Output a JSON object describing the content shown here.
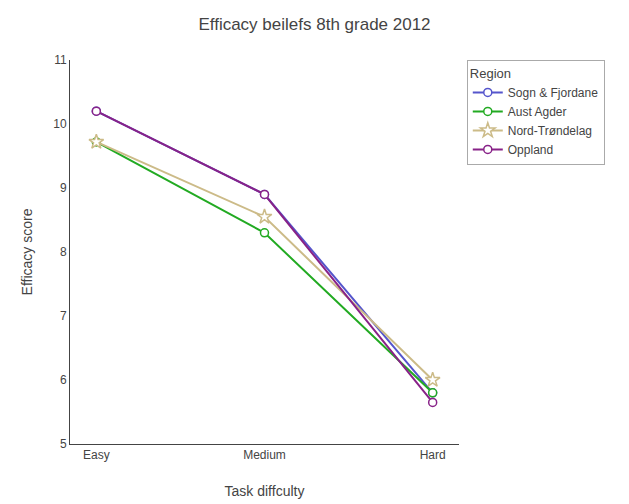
{
  "chart_data": {
    "type": "line",
    "title": "Efficacy beilefs 8th grade 2012",
    "xlabel": "Task diffculty",
    "ylabel": "Efficacy score",
    "categories": [
      "Easy",
      "Medium",
      "Hard"
    ],
    "series": [
      {
        "name": "Sogn & Fjordane",
        "color": "#5555cc",
        "marker": "circle",
        "values": [
          10.2,
          8.9,
          5.8
        ]
      },
      {
        "name": "Aust Agder",
        "color": "#22aa22",
        "marker": "circle",
        "values": [
          9.72,
          8.3,
          5.8
        ]
      },
      {
        "name": "Nord-Trøndelag",
        "color": "#ccbb88",
        "marker": "star",
        "values": [
          9.72,
          8.55,
          6.0
        ]
      },
      {
        "name": "Oppland",
        "color": "#882288",
        "marker": "circle",
        "values": [
          10.2,
          8.9,
          5.65
        ]
      }
    ],
    "ylim": [
      5,
      11
    ],
    "yticks": [
      5,
      6,
      7,
      8,
      9,
      10,
      11
    ],
    "grid": false,
    "legend": "right",
    "legend_title": "Region"
  }
}
